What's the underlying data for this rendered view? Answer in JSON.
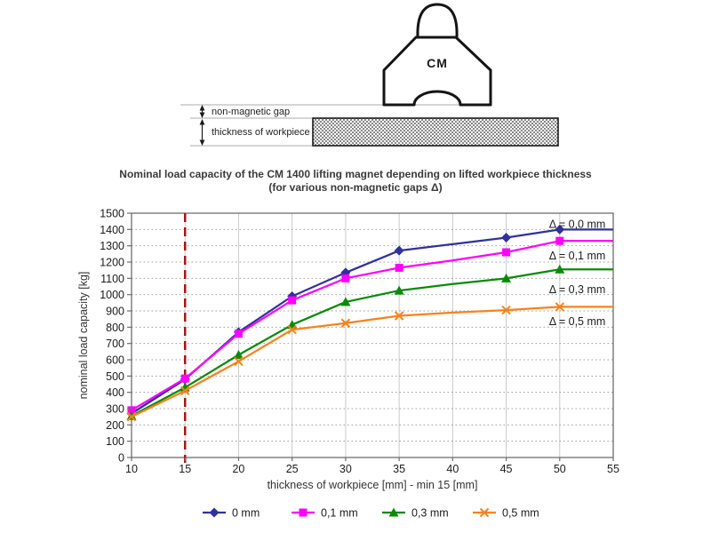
{
  "diagram": {
    "magnet_label": "CM",
    "gap_label": "non-magnetic gap",
    "workpiece_label": "thickness of workpiece"
  },
  "title": {
    "line1": "Nominal load capacity of the CM 1400 lifting magnet depending on lifted workpiece thickness",
    "line2": "(for various non-magnetic gaps Δ)"
  },
  "chart_data": {
    "type": "line",
    "title": "Nominal load capacity of the CM 1400 lifting magnet depending on lifted workpiece thickness (for various non-magnetic gaps Δ)",
    "xlabel": "thickness of workpiece [mm] - min 15 [mm]",
    "ylabel": "nominal load capacity [kg]",
    "x": [
      10,
      15,
      20,
      25,
      30,
      35,
      40,
      45,
      50,
      55
    ],
    "x_ticks": [
      10,
      15,
      20,
      25,
      30,
      35,
      40,
      45,
      50,
      55
    ],
    "xlim": [
      10,
      55
    ],
    "ylim": [
      0,
      1500
    ],
    "y_tick_step": 100,
    "grid": true,
    "legend_position": "bottom",
    "marker_x": [
      10,
      15,
      20,
      25,
      30,
      35,
      45,
      50
    ],
    "reference_line": {
      "x": 15,
      "color": "#A01818",
      "style": "dashed"
    },
    "series": [
      {
        "name": "0 mm",
        "marker": "diamond",
        "color": "#31319C",
        "values": [
          270,
          480,
          770,
          990,
          1135,
          1270,
          1310,
          1350,
          1400,
          1400
        ],
        "annotation": {
          "text": "Δ = 0,0 mm",
          "x": 49,
          "y": 1435
        }
      },
      {
        "name": "0,1 mm",
        "marker": "square",
        "color": "#FF00FF",
        "values": [
          290,
          485,
          760,
          965,
          1100,
          1165,
          1210,
          1260,
          1330,
          1330
        ],
        "annotation": {
          "text": "Δ = 0,1 mm",
          "x": 49,
          "y": 1240
        }
      },
      {
        "name": "0,3 mm",
        "marker": "triangle",
        "color": "#0A8A0A",
        "values": [
          255,
          430,
          630,
          815,
          955,
          1025,
          1065,
          1100,
          1155,
          1155
        ],
        "annotation": {
          "text": "Δ = 0,3 mm",
          "x": 49,
          "y": 1035
        }
      },
      {
        "name": "0,5 mm",
        "marker": "x",
        "color": "#F8821C",
        "values": [
          250,
          410,
          590,
          785,
          825,
          870,
          890,
          905,
          925,
          925
        ],
        "annotation": {
          "text": "Δ = 0,5 mm",
          "x": 49,
          "y": 838
        }
      }
    ],
    "colors": {
      "grid_horizontal": "#9C9C9C",
      "grid_vertical": "#C9C9C9",
      "plot_border": "#6E6E6E",
      "tick_text": "#1C1C1C",
      "axis_title_text": "#333333"
    }
  }
}
